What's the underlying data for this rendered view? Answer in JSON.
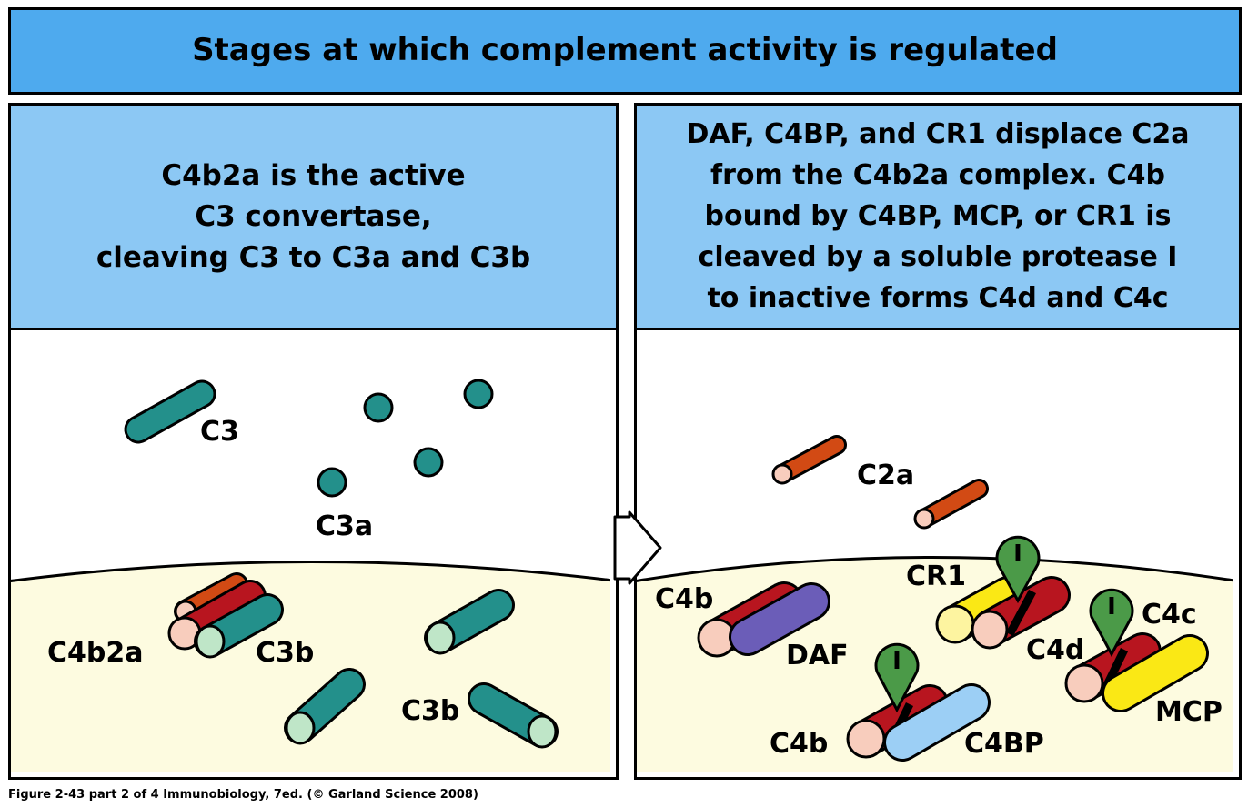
{
  "title": "Stages at which complement activity is regulated",
  "left_panel": {
    "header_lines": [
      "C4b2a is the active",
      "C3 convertase,",
      "cleaving C3 to C3a and C3b"
    ],
    "labels": {
      "c3": "C3",
      "c3a": "C3a",
      "c4b2a": "C4b2a",
      "c3b_1": "C3b",
      "c3b_2": "C3b"
    }
  },
  "right_panel": {
    "header_lines": [
      "DAF, C4BP, and CR1 displace C2a",
      "from the C4b2a complex. C4b",
      "bound by C4BP, MCP, or CR1 is",
      "cleaved by a soluble protease I",
      "to inactive forms C4d and C4c"
    ],
    "labels": {
      "c2a": "C2a",
      "cr1": "CR1",
      "c4b_1": "C4b",
      "daf": "DAF",
      "c4d": "C4d",
      "c4c": "C4c",
      "c4b_2": "C4b",
      "c4bp": "C4BP",
      "mcp": "MCP",
      "protease": "I"
    }
  },
  "caption": "Figure 2-43 part 2 of 4  Immunobiology, 7ed. (© Garland Science 2008)",
  "colors": {
    "title_bg": "#4eaaee",
    "header_bg": "#8cc8f4",
    "membrane": "#fdfbe0",
    "teal": "#23908b",
    "c3b_end": "#bfe6c8",
    "red": "#b8151f",
    "orange": "#d24a14",
    "pink_end": "#f8cdbd",
    "purple": "#6b5db8",
    "lightblue": "#9ccff5",
    "yellow": "#fae815",
    "green": "#4b9a48"
  }
}
